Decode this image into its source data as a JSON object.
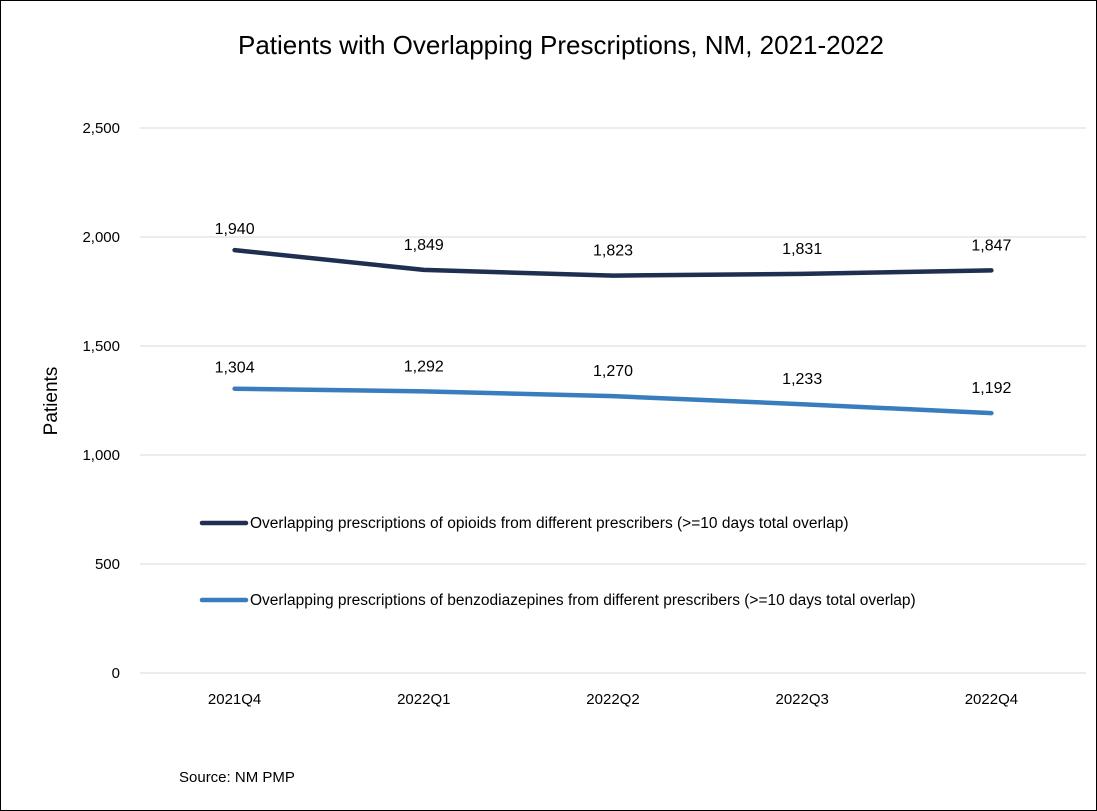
{
  "chart_data": {
    "type": "line",
    "title": "Patients with Overlapping Prescriptions, NM, 2021-2022",
    "xlabel": "",
    "ylabel": "Patients",
    "categories": [
      "2021Q4",
      "2022Q1",
      "2022Q2",
      "2022Q3",
      "2022Q4"
    ],
    "ylim": [
      0,
      2500
    ],
    "yticks": [
      0,
      500,
      1000,
      1500,
      2000,
      2500
    ],
    "ytick_labels": [
      "0",
      "500",
      "1,000",
      "1,500",
      "2,000",
      "2,500"
    ],
    "grid": "horizontal",
    "legend_position": "center",
    "series": [
      {
        "name": "Overlapping prescriptions of opioids from different prescribers (>=10 days total overlap)",
        "color": "#1f2f4f",
        "values": [
          1940,
          1849,
          1823,
          1831,
          1847
        ],
        "data_labels": [
          "1,940",
          "1,849",
          "1,823",
          "1,831",
          "1,847"
        ]
      },
      {
        "name": "Overlapping prescriptions of benzodiazepines from different prescribers (>=10 days total overlap)",
        "color": "#3a7dbf",
        "values": [
          1304,
          1292,
          1270,
          1233,
          1192
        ],
        "data_labels": [
          "1,304",
          "1,292",
          "1,270",
          "1,233",
          "1,192"
        ]
      }
    ],
    "source": "Source:  NM PMP"
  }
}
